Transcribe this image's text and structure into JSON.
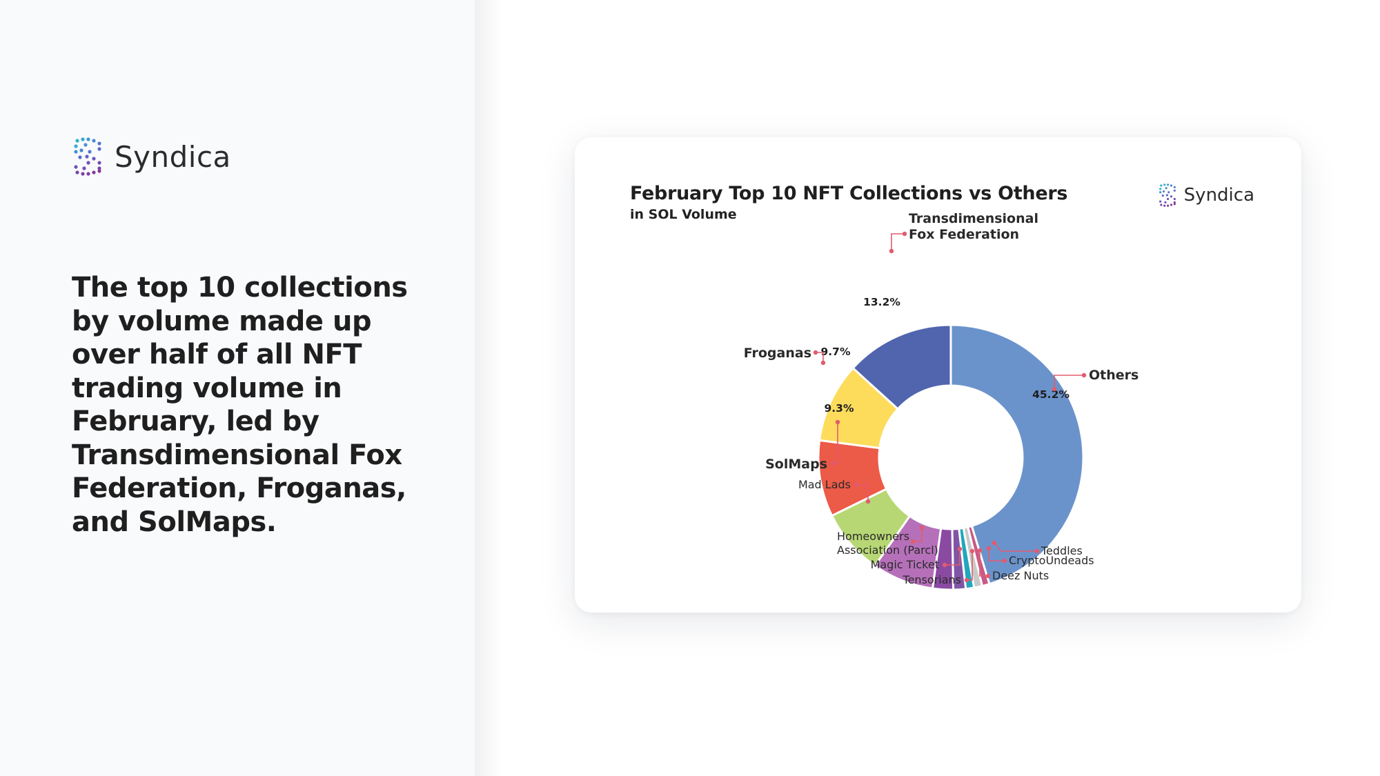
{
  "brand": {
    "name": "Syndica"
  },
  "headline": "The top 10 collections by volume made up over half of all NFT trading volume in February, led by Transdimensional Fox Federation, Froganas, and SolMaps.",
  "card": {
    "brand_name": "Syndica"
  },
  "colors": {
    "leader_line": "#e25b6e",
    "panel_bg": "#f9fafc"
  },
  "chart_data": {
    "type": "pie",
    "donut": true,
    "title": "February Top 10 NFT Collections vs Others",
    "subtitle": "in SOL Volume",
    "slices": [
      {
        "label": "Others",
        "value": 45.2,
        "pct_label": "45.2%",
        "color": "#6b93cb"
      },
      {
        "label": "Teddles",
        "value": 0.9,
        "pct_label": "",
        "color": "#c95a86"
      },
      {
        "label": "CryptoUndeads",
        "value": 1.0,
        "pct_label": "",
        "color": "#c9c9c9"
      },
      {
        "label": "Deez Nuts",
        "value": 1.0,
        "pct_label": "",
        "color": "#20a7bd"
      },
      {
        "label": "Tensorians",
        "value": 1.5,
        "pct_label": "",
        "color": "#8055a5"
      },
      {
        "label": "Magic Ticket",
        "value": 2.5,
        "pct_label": "",
        "color": "#8a4aa2"
      },
      {
        "label": "Homeowners Association (Parcl)",
        "label_lines": [
          "Homeowners",
          "Association (Parcl)"
        ],
        "value": 7.5,
        "pct_label": "",
        "color": "#b570b9"
      },
      {
        "label": "Mad Lads",
        "value": 8.0,
        "pct_label": "",
        "color": "#b7d774"
      },
      {
        "label": "SolMaps",
        "value": 9.3,
        "pct_label": "9.3%",
        "color": "#ec5a48"
      },
      {
        "label": "Froganas",
        "value": 9.7,
        "pct_label": "9.7%",
        "color": "#fddc5c"
      },
      {
        "label": "Transdimensional Fox Federation",
        "label_lines": [
          "Transdimensional",
          "Fox Federation"
        ],
        "value": 13.2,
        "pct_label": "13.2%",
        "color": "#5065ae"
      }
    ]
  }
}
